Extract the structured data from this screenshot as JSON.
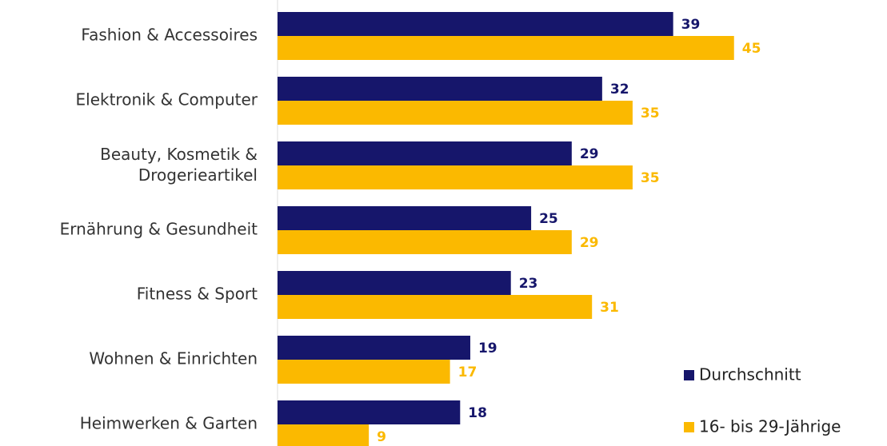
{
  "chart_data": {
    "type": "bar",
    "orientation": "horizontal",
    "categories": [
      "Fashion & Accessoires",
      "Elektronik & Computer",
      "Beauty, Kosmetik &\nDrogerieartikel",
      "Ernährung & Gesundheit",
      "Fitness & Sport",
      "Wohnen & Einrichten",
      "Heimwerken & Garten"
    ],
    "series": [
      {
        "name": "Durchschnitt",
        "color": "#16166b",
        "values": [
          39,
          32,
          29,
          25,
          23,
          19,
          18
        ]
      },
      {
        "name": "16- bis 29-Jährige",
        "color": "#fbb900",
        "values": [
          45,
          35,
          35,
          29,
          31,
          17,
          9
        ]
      }
    ],
    "xlim": [
      0,
      60
    ],
    "legend": "lower right"
  }
}
